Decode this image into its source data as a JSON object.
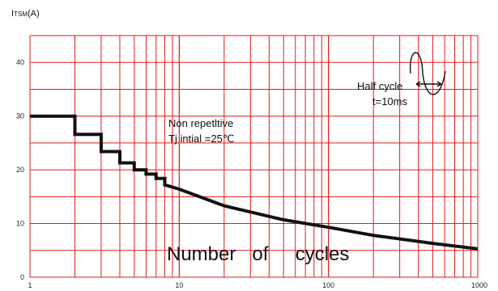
{
  "chart_data": {
    "type": "line",
    "ylabel_parts": {
      "main": "I",
      "sub": "TSM",
      "unit": "(A)"
    },
    "xlabel": "Number   of     cycles",
    "xscale": "log",
    "xlim": [
      1,
      1000
    ],
    "ylim": [
      0,
      45
    ],
    "x_ticks": [
      "1",
      "10",
      "100",
      "1000"
    ],
    "y_ticks": [
      "0",
      "10",
      "20",
      "30",
      "40"
    ],
    "grid": true,
    "grid_color": "#e31b1b",
    "line_color": "#111111",
    "annotations": {
      "condition_line1": "Non repetltive",
      "condition_line2": "Tj  intial =25℃",
      "waveform_line1": "Half  cycle",
      "waveform_line2": "t=10ms"
    },
    "series": [
      {
        "x": [
          1,
          2,
          2,
          3,
          3,
          4,
          4,
          5,
          5,
          6,
          6,
          7,
          7,
          8,
          8,
          10,
          20,
          50,
          100,
          200,
          500,
          1000
        ],
        "y": [
          30,
          30,
          26.6,
          26.6,
          23.4,
          23.4,
          21.3,
          21.3,
          20,
          20,
          19.2,
          19.2,
          18.4,
          18.4,
          17.2,
          16.4,
          13.3,
          10.7,
          9.3,
          7.8,
          6.3,
          5.3
        ]
      }
    ]
  }
}
